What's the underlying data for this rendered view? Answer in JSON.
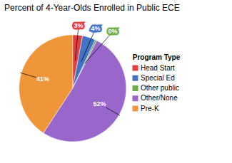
{
  "chart_data": {
    "type": "pie",
    "title": "Percent of 4-Year-Olds Enrolled in Public ECE",
    "categories": [
      "Head Start",
      "Special Ed",
      "Other public",
      "Other/None",
      "Pre-K"
    ],
    "values": [
      3,
      4,
      0.5,
      52,
      41
    ],
    "value_labels": [
      "3%",
      "4%",
      "0%",
      "52%",
      "41%"
    ],
    "colors": [
      "#e04040",
      "#4472c4",
      "#70ad47",
      "#9966cc",
      "#f0963a"
    ],
    "legend_title": "Program Type",
    "legend": "right",
    "data_labels": true
  }
}
